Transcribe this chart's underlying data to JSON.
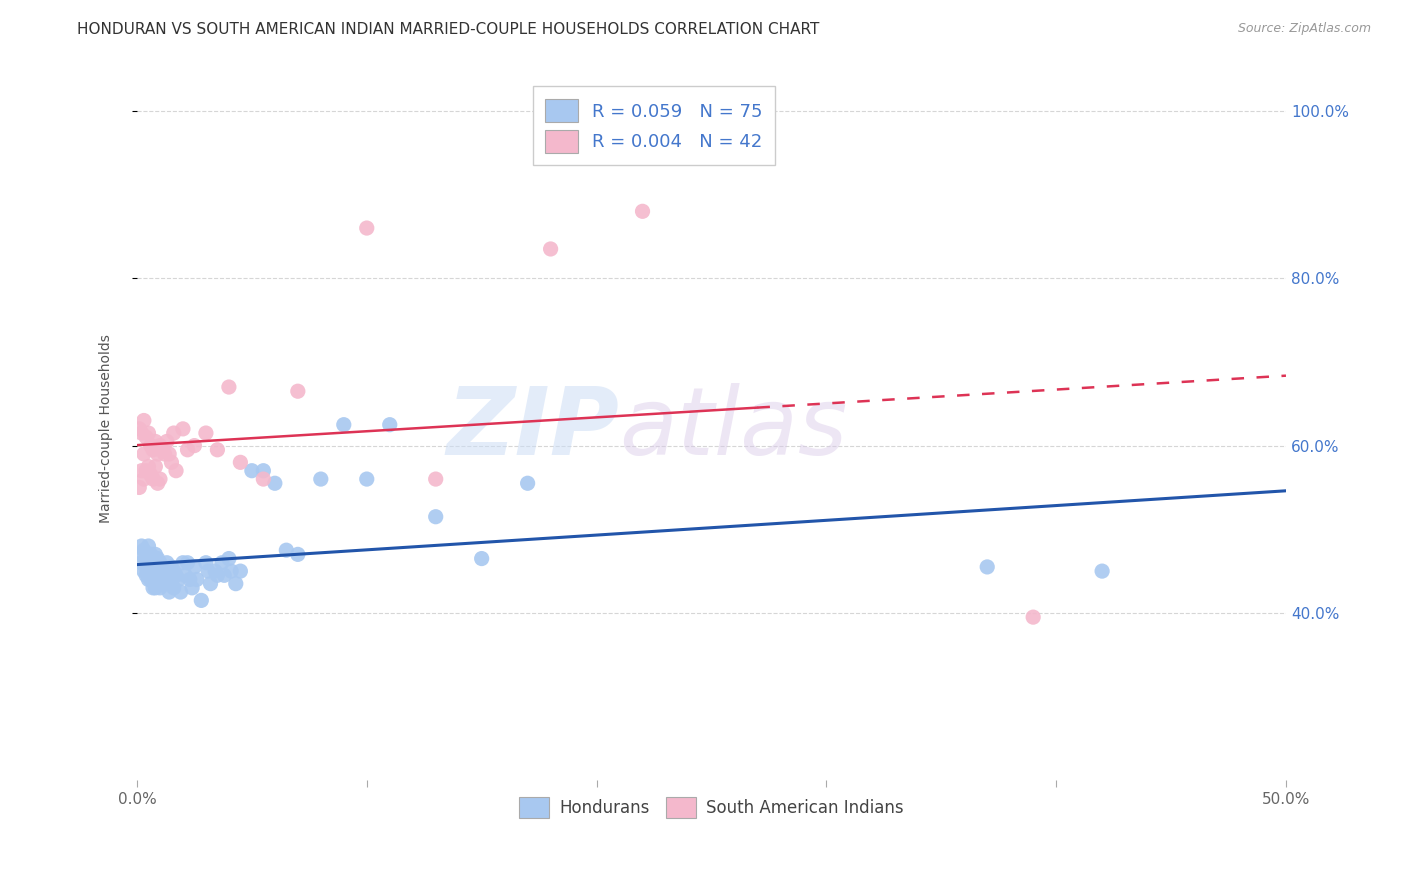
{
  "title": "HONDURAN VS SOUTH AMERICAN INDIAN MARRIED-COUPLE HOUSEHOLDS CORRELATION CHART",
  "source": "Source: ZipAtlas.com",
  "ylabel": "Married-couple Households",
  "watermark_zip": "ZIP",
  "watermark_atlas": "atlas",
  "xlim": [
    0.0,
    0.5
  ],
  "ylim": [
    0.2,
    1.04
  ],
  "xtick_positions": [
    0.0,
    0.1,
    0.2,
    0.3,
    0.4,
    0.5
  ],
  "xtick_labels": [
    "0.0%",
    "",
    "",
    "",
    "",
    "50.0%"
  ],
  "ytick_positions": [
    0.4,
    0.6,
    0.8,
    1.0
  ],
  "ytick_labels": [
    "40.0%",
    "60.0%",
    "80.0%",
    "100.0%"
  ],
  "blue_color": "#a8c8f0",
  "pink_color": "#f4b8cc",
  "blue_line_color": "#2255aa",
  "pink_line_color": "#dd3355",
  "legend_R1": "0.059",
  "legend_N1": "75",
  "legend_R2": "0.004",
  "legend_N2": "42",
  "legend_label1": "Hondurans",
  "legend_label2": "South American Indians",
  "title_fontsize": 11,
  "axis_label_fontsize": 10,
  "tick_fontsize": 11,
  "hondurans_x": [
    0.001,
    0.002,
    0.002,
    0.003,
    0.003,
    0.004,
    0.004,
    0.004,
    0.005,
    0.005,
    0.005,
    0.006,
    0.006,
    0.006,
    0.007,
    0.007,
    0.007,
    0.008,
    0.008,
    0.008,
    0.008,
    0.009,
    0.009,
    0.009,
    0.01,
    0.01,
    0.01,
    0.011,
    0.011,
    0.012,
    0.012,
    0.013,
    0.013,
    0.014,
    0.014,
    0.015,
    0.015,
    0.016,
    0.016,
    0.017,
    0.018,
    0.019,
    0.02,
    0.021,
    0.022,
    0.023,
    0.024,
    0.025,
    0.026,
    0.028,
    0.03,
    0.031,
    0.032,
    0.034,
    0.035,
    0.037,
    0.038,
    0.04,
    0.041,
    0.043,
    0.045,
    0.05,
    0.055,
    0.06,
    0.065,
    0.07,
    0.08,
    0.09,
    0.1,
    0.11,
    0.13,
    0.15,
    0.17,
    0.37,
    0.42
  ],
  "hondurans_y": [
    0.47,
    0.48,
    0.46,
    0.475,
    0.45,
    0.465,
    0.455,
    0.445,
    0.48,
    0.46,
    0.44,
    0.47,
    0.455,
    0.44,
    0.465,
    0.45,
    0.43,
    0.47,
    0.455,
    0.445,
    0.43,
    0.465,
    0.45,
    0.435,
    0.46,
    0.445,
    0.43,
    0.455,
    0.44,
    0.45,
    0.435,
    0.46,
    0.445,
    0.44,
    0.425,
    0.455,
    0.435,
    0.45,
    0.43,
    0.445,
    0.44,
    0.425,
    0.46,
    0.445,
    0.46,
    0.44,
    0.43,
    0.455,
    0.44,
    0.415,
    0.46,
    0.45,
    0.435,
    0.45,
    0.445,
    0.46,
    0.445,
    0.465,
    0.45,
    0.435,
    0.45,
    0.57,
    0.57,
    0.555,
    0.475,
    0.47,
    0.56,
    0.625,
    0.56,
    0.625,
    0.515,
    0.465,
    0.555,
    0.455,
    0.45
  ],
  "sa_indians_x": [
    0.001,
    0.001,
    0.002,
    0.002,
    0.003,
    0.003,
    0.003,
    0.004,
    0.004,
    0.005,
    0.005,
    0.006,
    0.006,
    0.007,
    0.007,
    0.008,
    0.008,
    0.009,
    0.009,
    0.01,
    0.01,
    0.011,
    0.012,
    0.013,
    0.014,
    0.015,
    0.016,
    0.017,
    0.02,
    0.022,
    0.025,
    0.03,
    0.035,
    0.04,
    0.045,
    0.055,
    0.07,
    0.1,
    0.13,
    0.18,
    0.22,
    0.39
  ],
  "sa_indians_y": [
    0.62,
    0.55,
    0.615,
    0.57,
    0.63,
    0.59,
    0.56,
    0.61,
    0.57,
    0.615,
    0.575,
    0.6,
    0.565,
    0.595,
    0.56,
    0.605,
    0.575,
    0.59,
    0.555,
    0.6,
    0.56,
    0.595,
    0.59,
    0.605,
    0.59,
    0.58,
    0.615,
    0.57,
    0.62,
    0.595,
    0.6,
    0.615,
    0.595,
    0.67,
    0.58,
    0.56,
    0.665,
    0.86,
    0.56,
    0.835,
    0.88,
    0.395
  ]
}
